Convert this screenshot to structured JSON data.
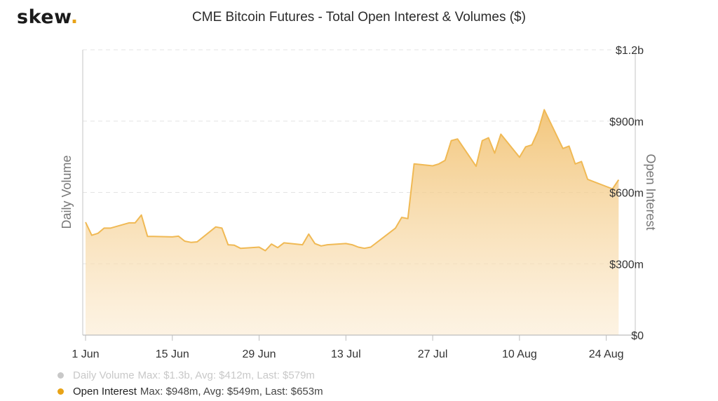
{
  "brand": {
    "name": "skew",
    "dot": ".",
    "dot_color": "#e8a317"
  },
  "chart_data": {
    "type": "area",
    "title": "CME Bitcoin Futures - Total Open Interest & Volumes ($)",
    "left_axis_label": "Daily Volume",
    "right_axis_label": "Open Interest",
    "x_ticks": [
      "1 Jun",
      "15 Jun",
      "29 Jun",
      "13 Jul",
      "27 Jul",
      "10 Aug",
      "24 Aug"
    ],
    "x_start": "2020-06-01",
    "x_end": "2020-08-28",
    "y_ticks": [
      "$0",
      "$300m",
      "$600m",
      "$900m",
      "$1.2b"
    ],
    "ylim": [
      0,
      1200
    ],
    "y_unit": "$m",
    "grid": "horizontal-dashed",
    "series": [
      {
        "name": "Daily Volume",
        "visible": false,
        "color": "#c8c8c8"
      },
      {
        "name": "Open Interest",
        "visible": true,
        "color": "#f0b954",
        "points": [
          [
            "2020-06-01",
            475
          ],
          [
            "2020-06-02",
            420
          ],
          [
            "2020-06-03",
            428
          ],
          [
            "2020-06-04",
            450
          ],
          [
            "2020-06-05",
            450
          ],
          [
            "2020-06-08",
            472
          ],
          [
            "2020-06-09",
            472
          ],
          [
            "2020-06-10",
            505
          ],
          [
            "2020-06-11",
            415
          ],
          [
            "2020-06-12",
            415
          ],
          [
            "2020-06-15",
            413
          ],
          [
            "2020-06-16",
            416
          ],
          [
            "2020-06-17",
            395
          ],
          [
            "2020-06-18",
            390
          ],
          [
            "2020-06-19",
            392
          ],
          [
            "2020-06-22",
            455
          ],
          [
            "2020-06-23",
            450
          ],
          [
            "2020-06-24",
            380
          ],
          [
            "2020-06-25",
            378
          ],
          [
            "2020-06-26",
            365
          ],
          [
            "2020-06-29",
            370
          ],
          [
            "2020-06-30",
            355
          ],
          [
            "2020-07-01",
            383
          ],
          [
            "2020-07-02",
            368
          ],
          [
            "2020-07-03",
            388
          ],
          [
            "2020-07-06",
            380
          ],
          [
            "2020-07-07",
            425
          ],
          [
            "2020-07-08",
            385
          ],
          [
            "2020-07-09",
            375
          ],
          [
            "2020-07-10",
            380
          ],
          [
            "2020-07-13",
            385
          ],
          [
            "2020-07-14",
            380
          ],
          [
            "2020-07-15",
            370
          ],
          [
            "2020-07-16",
            365
          ],
          [
            "2020-07-17",
            370
          ],
          [
            "2020-07-20",
            430
          ],
          [
            "2020-07-21",
            450
          ],
          [
            "2020-07-22",
            495
          ],
          [
            "2020-07-23",
            490
          ],
          [
            "2020-07-24",
            720
          ],
          [
            "2020-07-27",
            712
          ],
          [
            "2020-07-28",
            720
          ],
          [
            "2020-07-29",
            735
          ],
          [
            "2020-07-30",
            818
          ],
          [
            "2020-07-31",
            825
          ],
          [
            "2020-08-03",
            710
          ],
          [
            "2020-08-04",
            818
          ],
          [
            "2020-08-05",
            830
          ],
          [
            "2020-08-06",
            765
          ],
          [
            "2020-08-07",
            845
          ],
          [
            "2020-08-10",
            748
          ],
          [
            "2020-08-11",
            792
          ],
          [
            "2020-08-12",
            800
          ],
          [
            "2020-08-13",
            858
          ],
          [
            "2020-08-14",
            948
          ],
          [
            "2020-08-17",
            785
          ],
          [
            "2020-08-18",
            795
          ],
          [
            "2020-08-19",
            720
          ],
          [
            "2020-08-20",
            730
          ],
          [
            "2020-08-21",
            655
          ],
          [
            "2020-08-24",
            625
          ],
          [
            "2020-08-25",
            615
          ],
          [
            "2020-08-26",
            653
          ]
        ]
      }
    ]
  },
  "legend": [
    {
      "name": "Daily Volume",
      "stats": "Max: $1.3b, Avg: $412m, Last: $579m",
      "dot_color": "#c8c8c8"
    },
    {
      "name": "Open Interest",
      "stats": "Max: $948m, Avg: $549m, Last: $653m",
      "dot_color": "#e8a317"
    }
  ]
}
